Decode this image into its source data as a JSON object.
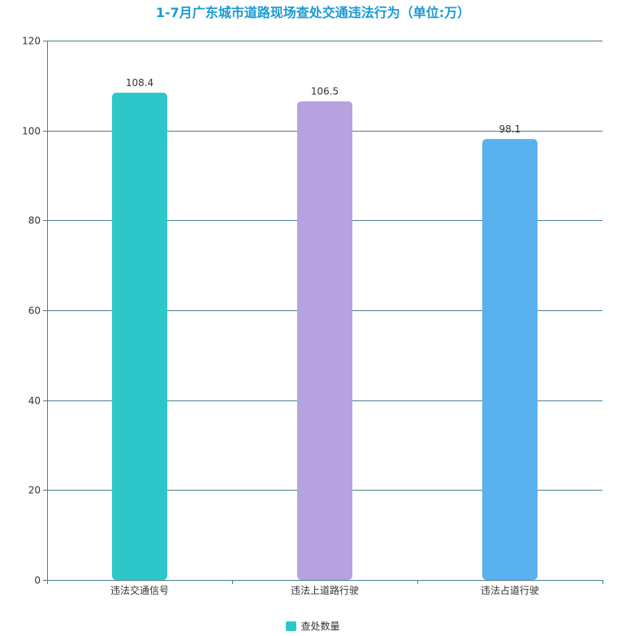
{
  "chart_data": {
    "type": "bar",
    "title": "1-7月广东城市道路现场查处交通违法行为（单位:万）",
    "categories": [
      "违法交通信号",
      "违法上道路行驶",
      "违法占道行驶"
    ],
    "series": [
      {
        "name": "查处数量",
        "values": [
          108.4,
          106.5,
          98.1
        ]
      }
    ],
    "data_labels": [
      "108.4",
      "106.5",
      "98.1"
    ],
    "bar_colors": [
      "#2ec7c9",
      "#b6a2de",
      "#5ab1ef"
    ],
    "legend_color": "#2ec7c9",
    "ylim": [
      0,
      120
    ],
    "yticks": [
      0,
      20,
      40,
      60,
      80,
      100,
      120
    ],
    "grid": true,
    "legend_position": "bottom-center",
    "title_color": "#1a9bd3",
    "axis_color": "#4a7d8c"
  }
}
